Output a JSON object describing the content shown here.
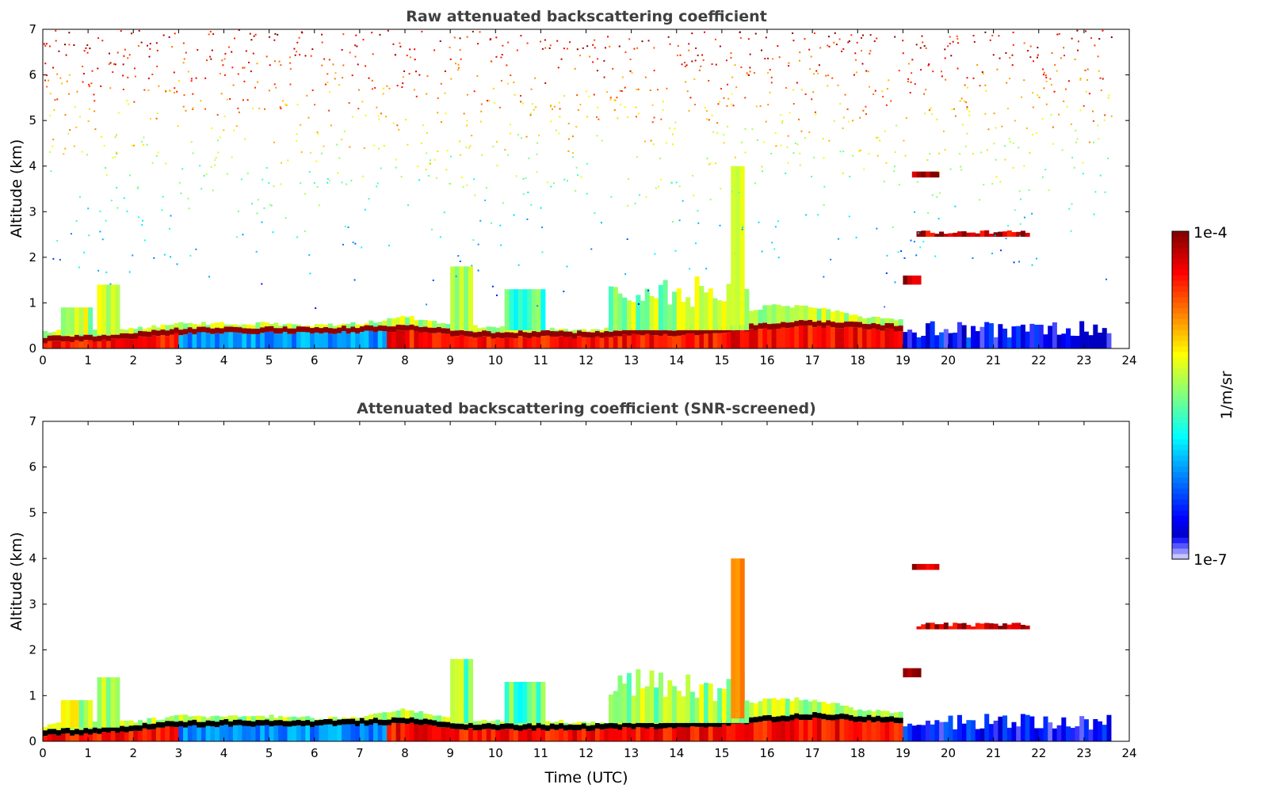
{
  "chart_data": [
    {
      "type": "heatmap",
      "title": "Raw attenuated backscattering coefficient",
      "xlabel": "",
      "ylabel": "Altitude (km)",
      "xlim": [
        0,
        24
      ],
      "ylim": [
        0,
        7
      ],
      "xticks": [
        "0",
        "1",
        "2",
        "3",
        "4",
        "5",
        "6",
        "7",
        "8",
        "9",
        "10",
        "11",
        "12",
        "13",
        "14",
        "15",
        "16",
        "17",
        "18",
        "19",
        "20",
        "21",
        "22",
        "23",
        "24"
      ],
      "yticks": [
        "0",
        "1",
        "2",
        "3",
        "4",
        "5",
        "6",
        "7"
      ],
      "data_end_hour": 23.6,
      "noise": true,
      "boundary_layer_top_km": {
        "hours": [
          0,
          1,
          2,
          3,
          4,
          5,
          6,
          7,
          8,
          9,
          10,
          11,
          12,
          13,
          14,
          15,
          16,
          17,
          18,
          19
        ],
        "values": [
          0.2,
          0.22,
          0.3,
          0.38,
          0.4,
          0.4,
          0.4,
          0.42,
          0.45,
          0.35,
          0.3,
          0.32,
          0.3,
          0.35,
          0.35,
          0.4,
          0.5,
          0.55,
          0.5,
          0.45
        ]
      },
      "aerosol_top_km": {
        "hours": [
          0,
          1,
          2,
          3,
          4,
          5,
          6,
          7,
          8,
          9,
          10,
          11,
          12,
          13,
          14,
          15,
          16,
          17,
          18,
          19
        ],
        "values": [
          0.35,
          0.45,
          0.45,
          0.55,
          0.55,
          0.55,
          0.5,
          0.55,
          0.7,
          0.5,
          0.45,
          0.45,
          0.4,
          0.5,
          0.5,
          0.6,
          0.95,
          0.9,
          0.7,
          0.6
        ]
      },
      "features": [
        {
          "t0": 0.4,
          "t1": 1.0,
          "z0": 0.3,
          "z1": 0.9,
          "log_beta": -5.3
        },
        {
          "t0": 1.2,
          "t1": 1.7,
          "z0": 0.3,
          "z1": 1.4,
          "log_beta": -5.4
        },
        {
          "t0": 9.0,
          "t1": 9.4,
          "z0": 0.4,
          "z1": 1.8,
          "log_beta": -5.5
        },
        {
          "t0": 10.2,
          "t1": 11.0,
          "z0": 0.4,
          "z1": 1.3,
          "log_beta": -5.6
        },
        {
          "t0": 12.5,
          "t1": 15.5,
          "z0": 0.4,
          "z1": 1.6,
          "log_beta": -5.4
        },
        {
          "t0": 15.2,
          "t1": 15.4,
          "z0": 0.5,
          "z1": 4.0,
          "log_beta": -5.0
        },
        {
          "t0": 19.0,
          "t1": 19.4,
          "z0": 1.4,
          "z1": 1.6,
          "log_beta": -4.1
        },
        {
          "t0": 19.3,
          "t1": 19.8,
          "z0": 3.75,
          "z1": 3.88,
          "log_beta": -4.1
        },
        {
          "t0": 19.4,
          "t1": 21.8,
          "z0": 2.45,
          "z1": 2.6,
          "log_beta": -4.2
        },
        {
          "t0": 19.0,
          "t1": 23.6,
          "z0": 0.0,
          "z1": 0.6,
          "log_beta": -6.6
        }
      ]
    },
    {
      "type": "heatmap",
      "title": "Attenuated backscattering coefficient (SNR-screened)",
      "xlabel": "Time (UTC)",
      "ylabel": "Altitude (km)",
      "xlim": [
        0,
        24
      ],
      "ylim": [
        0,
        7
      ],
      "xticks": [
        "0",
        "1",
        "2",
        "3",
        "4",
        "5",
        "6",
        "7",
        "8",
        "9",
        "10",
        "11",
        "12",
        "13",
        "14",
        "15",
        "16",
        "17",
        "18",
        "19",
        "20",
        "21",
        "22",
        "23",
        "24"
      ],
      "yticks": [
        "0",
        "1",
        "2",
        "3",
        "4",
        "5",
        "6",
        "7"
      ],
      "data_end_hour": 23.6,
      "noise": false
    }
  ],
  "colorbar": {
    "label": "1/m/sr",
    "max_label": "1e-4",
    "min_label": "1e-7",
    "scale": "log",
    "range": [
      1e-07,
      0.0001
    ]
  }
}
